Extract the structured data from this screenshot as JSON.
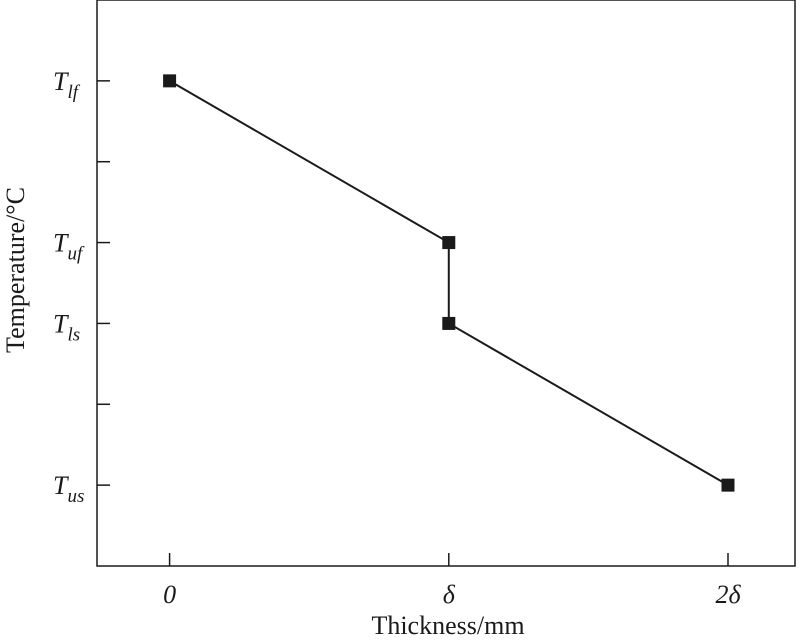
{
  "chart_data": {
    "type": "line",
    "x_label": "Thickness/mm",
    "y_label": "Temperature/°C",
    "xlim": [
      -0.26,
      2.24
    ],
    "xticks": [
      0,
      {
        "value": 1,
        "label": "δ"
      },
      {
        "value": 2,
        "label": "2δ"
      }
    ],
    "ylim": [
      -1,
      6
    ],
    "yticks": [
      {
        "value": 5,
        "label": "T",
        "subscript": "lf"
      },
      {
        "value": 3,
        "label": "T",
        "subscript": "uf"
      },
      {
        "value": 2,
        "label": "T",
        "subscript": "ls"
      },
      {
        "value": 0,
        "label": "T",
        "subscript": "us"
      }
    ],
    "minor_yticks": [
      1,
      4
    ],
    "series": [
      {
        "color": "#1a1a1a",
        "x": [
          0,
          1,
          1,
          2
        ],
        "values": [
          5,
          3,
          2,
          0
        ]
      }
    ]
  }
}
